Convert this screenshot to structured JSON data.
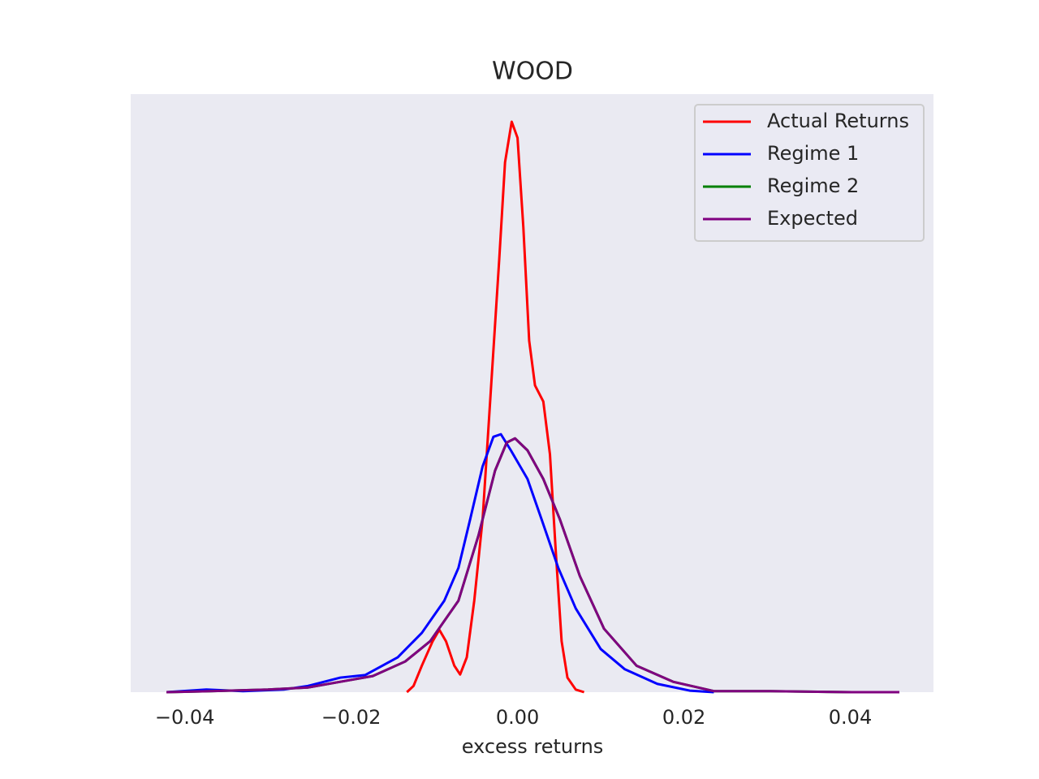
{
  "chart_data": {
    "type": "line",
    "title": "WOOD",
    "x_label": "excess returns",
    "xlim": [
      -0.0465,
      0.05
    ],
    "ylim": [
      0,
      115
    ],
    "xticks": [
      {
        "value": -0.04,
        "label": "−0.04"
      },
      {
        "value": -0.02,
        "label": "−0.02"
      },
      {
        "value": 0,
        "label": "0.00"
      },
      0.02,
      0.04
    ],
    "legend": "upper right",
    "grid": false,
    "series": [
      {
        "name": "Actual Returns",
        "color": "#ff0000",
        "x": [
          -0.0133,
          -0.0125,
          -0.0115,
          -0.0102,
          -0.0094,
          -0.0086,
          -0.0076,
          -0.0069,
          -0.0061,
          -0.0052,
          -0.0042,
          -0.0032,
          -0.0022,
          -0.0015,
          -0.0007,
          0,
          0.0007,
          0.0014,
          0.0021,
          0.0031,
          0.0039,
          0.0046,
          0.0053,
          0.006,
          0.007,
          0.008
        ],
        "values": [
          0,
          1.2,
          5.1,
          9.8,
          12.0,
          9.8,
          5.1,
          3.4,
          6.7,
          17.6,
          33.2,
          58.2,
          83.2,
          101.9,
          109.7,
          106.6,
          89.4,
          67.6,
          59.0,
          55.9,
          45.7,
          27.0,
          9.8,
          2.8,
          0.5,
          0
        ]
      },
      {
        "name": "Regime 1",
        "color": "#0000ff",
        "x": [
          -0.0422,
          -0.0374,
          -0.033,
          -0.0281,
          -0.0252,
          -0.0213,
          -0.0183,
          -0.0144,
          -0.0115,
          -0.0088,
          -0.0071,
          -0.0057,
          -0.0042,
          -0.0029,
          -0.002,
          -0.0008,
          0.0012,
          0.0029,
          0.0049,
          0.007,
          0.01,
          0.0129,
          0.0168,
          0.0207,
          0.0236
        ],
        "values": [
          0,
          0.5,
          0.2,
          0.5,
          1.2,
          2.8,
          3.3,
          6.7,
          11.4,
          17.6,
          23.9,
          33.2,
          43.4,
          49.1,
          49.6,
          46.5,
          41.0,
          33.2,
          23.9,
          16.1,
          8.3,
          4.4,
          1.6,
          0.3,
          0
        ]
      },
      {
        "name": "Regime 2",
        "color": "#008000",
        "x": [
          -0.0422,
          -0.0369,
          -0.03,
          -0.0252,
          -0.0213,
          -0.0174,
          -0.0135,
          -0.0105,
          -0.0071,
          -0.0047,
          -0.0027,
          -0.0013,
          -0.0003,
          0.0012,
          0.0031,
          0.0051,
          0.0075,
          0.0104,
          0.0143,
          0.0187,
          0.0236,
          0.0304,
          0.0402,
          0.0459
        ],
        "values": [
          0,
          0.2,
          0.5,
          0.9,
          2.0,
          3.1,
          5.9,
          9.8,
          17.6,
          30.1,
          42.6,
          48.0,
          48.8,
          46.5,
          41.0,
          33.2,
          22.3,
          12.2,
          5.1,
          2.0,
          0.2,
          0.2,
          0,
          0
        ]
      },
      {
        "name": "Expected",
        "color": "#800080",
        "x": [
          -0.0422,
          -0.0369,
          -0.03,
          -0.0252,
          -0.0213,
          -0.0174,
          -0.0135,
          -0.0105,
          -0.0071,
          -0.0047,
          -0.0027,
          -0.0013,
          -0.0003,
          0.0012,
          0.0031,
          0.0051,
          0.0075,
          0.0104,
          0.0143,
          0.0187,
          0.0236,
          0.0304,
          0.0402,
          0.0459
        ],
        "values": [
          0,
          0.2,
          0.5,
          0.9,
          2.0,
          3.1,
          5.9,
          9.8,
          17.6,
          30.1,
          42.6,
          48.0,
          48.8,
          46.5,
          41.0,
          33.2,
          22.3,
          12.2,
          5.1,
          2.0,
          0.2,
          0.2,
          0,
          0
        ]
      }
    ]
  }
}
